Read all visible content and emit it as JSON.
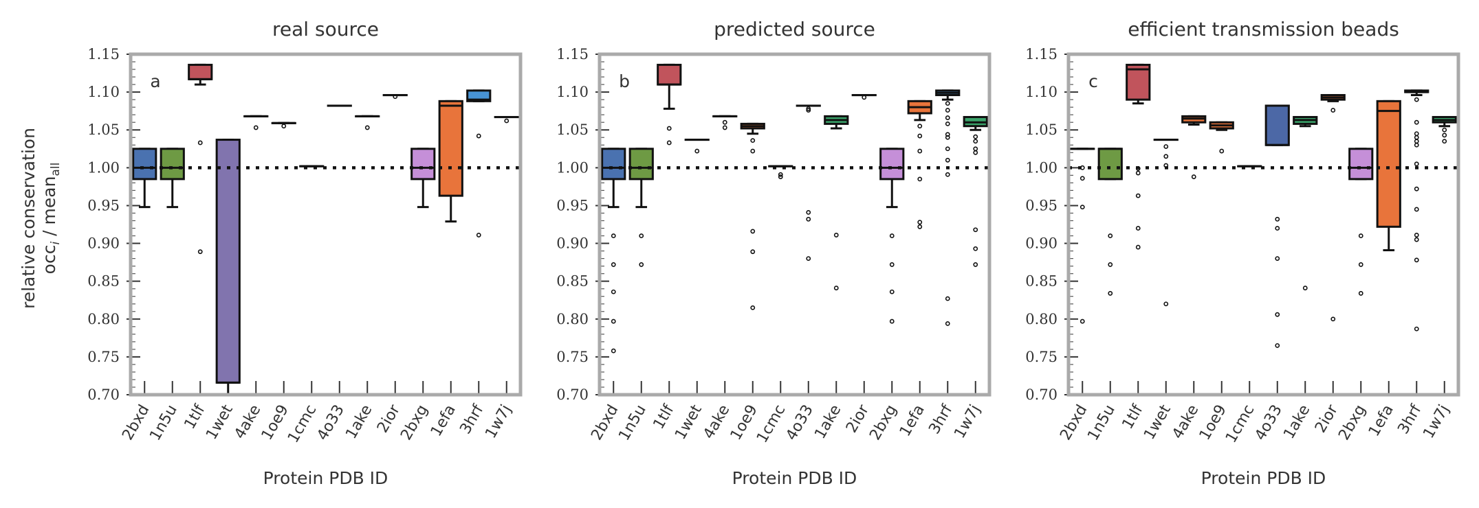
{
  "chart_data": {
    "type": "box",
    "ylabel_line1": "relative conservation",
    "ylabel_line2": "occ",
    "ylabel_sub_i": "i",
    "ylabel_sep": " / mean",
    "ylabel_sub_all": "all",
    "xlabel": "Protein PDB ID",
    "ylim": [
      0.7,
      1.15
    ],
    "yticks": [
      "0.70",
      "0.75",
      "0.80",
      "0.85",
      "0.90",
      "0.95",
      "1.00",
      "1.05",
      "1.10",
      "1.15"
    ],
    "reference_line": 1.0,
    "colors": {
      "blue": "#4a72b0",
      "green": "#6e9a44",
      "red": "#c1545c",
      "purple": "#8174ae",
      "orange": "#e8743b",
      "lilac": "#c58fd8",
      "skyblue": "#4893d4",
      "teal": "#3aa36a",
      "navy": "#4c68a6",
      "axis": "#aaaaaa",
      "ink": "#111111"
    },
    "panels": [
      {
        "title": "real source",
        "label": "a",
        "categories": [
          "2bxd",
          "1n5u",
          "1tlf",
          "1wet",
          "4ake",
          "1oe9",
          "1cmc",
          "4o33",
          "1ake",
          "2ior",
          "2bxg",
          "1efa",
          "3hrf",
          "1w7j"
        ],
        "boxes": [
          {
            "q1": 0.985,
            "med": 1.0,
            "q3": 1.025,
            "lo": 0.948,
            "hi": 1.025,
            "color": "blue",
            "fliers": []
          },
          {
            "q1": 0.985,
            "med": 1.0,
            "q3": 1.025,
            "lo": 0.948,
            "hi": 1.025,
            "color": "green",
            "fliers": []
          },
          {
            "q1": 1.117,
            "med": 1.117,
            "q3": 1.136,
            "lo": 1.11,
            "hi": 1.136,
            "color": "red",
            "fliers": [
              1.033,
              0.889
            ]
          },
          {
            "q1": 0.716,
            "med": 0.716,
            "q3": 1.037,
            "lo": 0.7,
            "hi": 1.037,
            "color": "purple",
            "fliers": []
          },
          {
            "q1": 1.068,
            "med": 1.068,
            "q3": 1.068,
            "lo": 1.068,
            "hi": 1.068,
            "color": "orange",
            "fliers": [
              1.053
            ]
          },
          {
            "q1": 1.059,
            "med": 1.059,
            "q3": 1.059,
            "lo": 1.059,
            "hi": 1.059,
            "color": "orange",
            "fliers": [
              1.055
            ]
          },
          {
            "q1": 1.002,
            "med": 1.002,
            "q3": 1.002,
            "lo": 1.002,
            "hi": 1.002,
            "color": "green",
            "fliers": []
          },
          {
            "q1": 1.082,
            "med": 1.082,
            "q3": 1.082,
            "lo": 1.082,
            "hi": 1.082,
            "color": "green",
            "fliers": []
          },
          {
            "q1": 1.068,
            "med": 1.068,
            "q3": 1.068,
            "lo": 1.068,
            "hi": 1.068,
            "color": "teal",
            "fliers": [
              1.053
            ]
          },
          {
            "q1": 1.096,
            "med": 1.096,
            "q3": 1.096,
            "lo": 1.096,
            "hi": 1.096,
            "color": "orange",
            "fliers": [
              1.094
            ]
          },
          {
            "q1": 0.985,
            "med": 1.0,
            "q3": 1.025,
            "lo": 0.948,
            "hi": 1.025,
            "color": "lilac",
            "fliers": []
          },
          {
            "q1": 0.963,
            "med": 1.082,
            "q3": 1.088,
            "lo": 0.929,
            "hi": 1.088,
            "color": "orange",
            "fliers": []
          },
          {
            "q1": 1.088,
            "med": 1.09,
            "q3": 1.102,
            "lo": 1.088,
            "hi": 1.102,
            "color": "skyblue",
            "fliers": [
              1.042,
              0.911
            ]
          },
          {
            "q1": 1.067,
            "med": 1.067,
            "q3": 1.067,
            "lo": 1.067,
            "hi": 1.067,
            "color": "teal",
            "fliers": [
              1.062
            ]
          }
        ]
      },
      {
        "title": "predicted source",
        "label": "b",
        "categories": [
          "2bxd",
          "1n5u",
          "1tlf",
          "1wet",
          "4ake",
          "1oe9",
          "1cmc",
          "4o33",
          "1ake",
          "2ior",
          "2bxg",
          "1efa",
          "3hrf",
          "1w7j"
        ],
        "boxes": [
          {
            "q1": 0.985,
            "med": 1.0,
            "q3": 1.025,
            "lo": 0.948,
            "hi": 1.025,
            "color": "blue",
            "fliers": [
              0.91,
              0.872,
              0.836,
              0.797,
              0.758
            ]
          },
          {
            "q1": 0.985,
            "med": 1.0,
            "q3": 1.025,
            "lo": 0.948,
            "hi": 1.025,
            "color": "green",
            "fliers": [
              0.91,
              0.872
            ]
          },
          {
            "q1": 1.11,
            "med": 1.11,
            "q3": 1.136,
            "lo": 1.078,
            "hi": 1.136,
            "color": "red",
            "fliers": [
              1.052,
              1.033
            ]
          },
          {
            "q1": 1.037,
            "med": 1.037,
            "q3": 1.037,
            "lo": 1.037,
            "hi": 1.037,
            "color": "purple",
            "fliers": [
              1.022
            ]
          },
          {
            "q1": 1.068,
            "med": 1.068,
            "q3": 1.068,
            "lo": 1.068,
            "hi": 1.068,
            "color": "orange",
            "fliers": [
              1.06,
              1.053
            ]
          },
          {
            "q1": 1.052,
            "med": 1.055,
            "q3": 1.058,
            "lo": 1.045,
            "hi": 1.058,
            "color": "orange",
            "fliers": [
              1.036,
              1.022,
              0.916,
              0.889,
              0.815
            ]
          },
          {
            "q1": 1.002,
            "med": 1.002,
            "q3": 1.002,
            "lo": 1.002,
            "hi": 1.002,
            "color": "green",
            "fliers": [
              0.991,
              0.988
            ]
          },
          {
            "q1": 1.082,
            "med": 1.082,
            "q3": 1.082,
            "lo": 1.082,
            "hi": 1.082,
            "color": "green",
            "fliers": [
              1.078,
              1.076,
              0.941,
              0.932,
              0.88
            ]
          },
          {
            "q1": 1.058,
            "med": 1.063,
            "q3": 1.068,
            "lo": 1.052,
            "hi": 1.068,
            "color": "teal",
            "fliers": [
              0.911,
              0.841
            ]
          },
          {
            "q1": 1.096,
            "med": 1.096,
            "q3": 1.096,
            "lo": 1.096,
            "hi": 1.096,
            "color": "orange",
            "fliers": [
              1.093
            ]
          },
          {
            "q1": 0.985,
            "med": 1.0,
            "q3": 1.025,
            "lo": 0.948,
            "hi": 1.025,
            "color": "lilac",
            "fliers": [
              0.91,
              0.872,
              0.836,
              0.797
            ]
          },
          {
            "q1": 1.072,
            "med": 1.08,
            "q3": 1.088,
            "lo": 1.063,
            "hi": 1.088,
            "color": "orange",
            "fliers": [
              1.055,
              1.042,
              1.022,
              0.985,
              0.928,
              0.922
            ]
          },
          {
            "q1": 1.096,
            "med": 1.099,
            "q3": 1.102,
            "lo": 1.09,
            "hi": 1.102,
            "color": "skyblue",
            "fliers": [
              1.085,
              1.076,
              1.066,
              1.058,
              1.044,
              1.04,
              1.025,
              1.01,
              0.991,
              0.827,
              0.794
            ]
          },
          {
            "q1": 1.055,
            "med": 1.06,
            "q3": 1.067,
            "lo": 1.05,
            "hi": 1.067,
            "color": "teal",
            "fliers": [
              1.041,
              1.035,
              1.025,
              1.02,
              0.918,
              0.893,
              0.872
            ]
          }
        ]
      },
      {
        "title": "efficient transmission beads",
        "label": "c",
        "categories": [
          "2bxd",
          "1n5u",
          "1tlf",
          "1wet",
          "4ake",
          "1oe9",
          "1cmc",
          "4o33",
          "1ake",
          "2ior",
          "2bxg",
          "1efa",
          "3hrf",
          "1w7j"
        ],
        "boxes": [
          {
            "q1": 1.025,
            "med": 1.025,
            "q3": 1.025,
            "lo": 1.025,
            "hi": 1.025,
            "color": "blue",
            "fliers": [
              1.0,
              0.986,
              0.948,
              0.797
            ]
          },
          {
            "q1": 0.985,
            "med": 1.025,
            "q3": 1.025,
            "lo": 0.985,
            "hi": 1.025,
            "color": "green",
            "fliers": [
              0.91,
              0.872,
              0.834
            ]
          },
          {
            "q1": 1.09,
            "med": 1.13,
            "q3": 1.136,
            "lo": 1.085,
            "hi": 1.136,
            "color": "red",
            "fliers": [
              0.999,
              0.993,
              0.963,
              0.92,
              0.895
            ]
          },
          {
            "q1": 1.037,
            "med": 1.037,
            "q3": 1.037,
            "lo": 1.037,
            "hi": 1.037,
            "color": "purple",
            "fliers": [
              1.028,
              1.015,
              1.003,
              0.82
            ]
          },
          {
            "q1": 1.06,
            "med": 1.065,
            "q3": 1.068,
            "lo": 1.057,
            "hi": 1.068,
            "color": "orange",
            "fliers": [
              0.988
            ]
          },
          {
            "q1": 1.052,
            "med": 1.056,
            "q3": 1.06,
            "lo": 1.05,
            "hi": 1.06,
            "color": "orange",
            "fliers": [
              1.022
            ]
          },
          {
            "q1": 1.002,
            "med": 1.002,
            "q3": 1.002,
            "lo": 1.002,
            "hi": 1.002,
            "color": "green",
            "fliers": []
          },
          {
            "q1": 1.03,
            "med": 1.03,
            "q3": 1.082,
            "lo": 1.03,
            "hi": 1.082,
            "color": "navy",
            "fliers": [
              0.932,
              0.92,
              0.88,
              0.806,
              0.765
            ]
          },
          {
            "q1": 1.058,
            "med": 1.063,
            "q3": 1.067,
            "lo": 1.055,
            "hi": 1.067,
            "color": "teal",
            "fliers": [
              0.841
            ]
          },
          {
            "q1": 1.09,
            "med": 1.093,
            "q3": 1.096,
            "lo": 1.088,
            "hi": 1.096,
            "color": "orange",
            "fliers": [
              1.076,
              0.8
            ]
          },
          {
            "q1": 0.985,
            "med": 1.0,
            "q3": 1.025,
            "lo": 0.985,
            "hi": 1.025,
            "color": "lilac",
            "fliers": [
              0.91,
              0.872,
              0.834
            ]
          },
          {
            "q1": 0.922,
            "med": 1.075,
            "q3": 1.088,
            "lo": 0.891,
            "hi": 1.088,
            "color": "orange",
            "fliers": []
          },
          {
            "q1": 1.1,
            "med": 1.1,
            "q3": 1.102,
            "lo": 1.096,
            "hi": 1.102,
            "color": "skyblue",
            "fliers": [
              1.09,
              1.06,
              1.045,
              1.04,
              1.035,
              1.03,
              1.005,
              0.972,
              0.945,
              0.911,
              0.905,
              0.878,
              0.787
            ]
          },
          {
            "q1": 1.06,
            "med": 1.063,
            "q3": 1.067,
            "lo": 1.055,
            "hi": 1.067,
            "color": "teal",
            "fliers": [
              1.05,
              1.043,
              1.035
            ]
          }
        ]
      }
    ]
  }
}
